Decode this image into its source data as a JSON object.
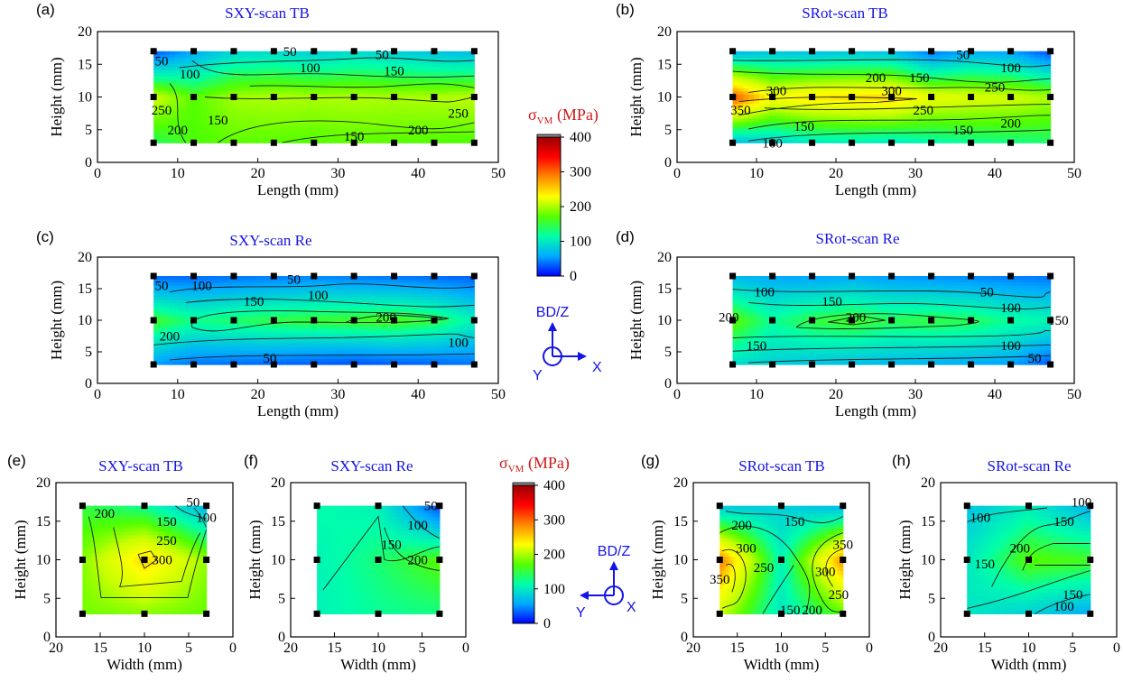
{
  "chart_data": {
    "colorbars": [
      {
        "label": "σVM (MPa)",
        "range": [
          0,
          400
        ],
        "ticks": [
          "0",
          "100",
          "200",
          "300",
          "400"
        ],
        "colors": [
          "#0000ff",
          "#00aaff",
          "#00ffaa",
          "#55ff00",
          "#ffff00",
          "#ff8800",
          "#ff0000",
          "#990000"
        ]
      },
      {
        "label": "σVM (MPa)",
        "range": [
          0,
          400
        ],
        "ticks": [
          "0",
          "100",
          "200",
          "300",
          "400"
        ],
        "colors": [
          "#0000ff",
          "#00aaff",
          "#00ffaa",
          "#55ff00",
          "#ffff00",
          "#ff8800",
          "#ff0000",
          "#990000"
        ]
      }
    ],
    "axis_indicators": [
      {
        "up": "BD/Z",
        "left": "Y",
        "right": "X"
      },
      {
        "up": "BD/Z",
        "left": "Y",
        "right": "X"
      }
    ],
    "panels": [
      {
        "id": "a",
        "label": "(a)",
        "title": "SXY-scan TB",
        "type": "heatmap",
        "xlabel": "Length (mm)",
        "ylabel": "Height (mm)",
        "xlim": [
          0,
          50
        ],
        "ylim": [
          0,
          20
        ],
        "xticks": [
          "0",
          "10",
          "20",
          "30",
          "40",
          "50"
        ],
        "yticks": [
          "0",
          "5",
          "10",
          "15",
          "20"
        ],
        "x": [
          7,
          12,
          17,
          22,
          27,
          32,
          37,
          42,
          47
        ],
        "y": [
          3,
          10,
          17
        ],
        "values": [
          [
            180,
            205,
            212,
            210,
            208,
            212,
            210,
            208,
            206
          ],
          [
            255,
            210,
            235,
            240,
            238,
            240,
            238,
            240,
            245
          ],
          [
            45,
            90,
            125,
            130,
            118,
            128,
            120,
            110,
            102
          ]
        ],
        "contour_labels": [
          {
            "text": "50",
            "x": 8,
            "y": 15.5
          },
          {
            "text": "100",
            "x": 11.5,
            "y": 13.5
          },
          {
            "text": "50",
            "x": 24,
            "y": 17
          },
          {
            "text": "50",
            "x": 35.5,
            "y": 16.5
          },
          {
            "text": "100",
            "x": 26.5,
            "y": 14.5
          },
          {
            "text": "150",
            "x": 37,
            "y": 14
          },
          {
            "text": "250",
            "x": 8,
            "y": 8
          },
          {
            "text": "200",
            "x": 10,
            "y": 5
          },
          {
            "text": "150",
            "x": 15,
            "y": 6.5
          },
          {
            "text": "150",
            "x": 32,
            "y": 4
          },
          {
            "text": "200",
            "x": 40,
            "y": 5
          },
          {
            "text": "250",
            "x": 45,
            "y": 7.5
          }
        ]
      },
      {
        "id": "b",
        "label": "(b)",
        "title": "SRot-scan TB",
        "type": "heatmap",
        "xlabel": "Length (mm)",
        "ylabel": "Height (mm)",
        "xlim": [
          0,
          50
        ],
        "ylim": [
          0,
          20
        ],
        "xticks": [
          "0",
          "10",
          "20",
          "30",
          "40",
          "50"
        ],
        "yticks": [
          "0",
          "5",
          "10",
          "15",
          "20"
        ],
        "x": [
          7,
          12,
          17,
          22,
          27,
          32,
          37,
          42,
          47
        ],
        "y": [
          3,
          10,
          17
        ],
        "values": [
          [
            100,
            120,
            140,
            145,
            140,
            155,
            165,
            170,
            175
          ],
          [
            370,
            285,
            300,
            305,
            310,
            270,
            262,
            255,
            240
          ],
          [
            95,
            110,
            105,
            110,
            105,
            60,
            90,
            85,
            40
          ]
        ],
        "contour_labels": [
          {
            "text": "50",
            "x": 36,
            "y": 16.5
          },
          {
            "text": "100",
            "x": 42,
            "y": 14.5
          },
          {
            "text": "200",
            "x": 25,
            "y": 13
          },
          {
            "text": "150",
            "x": 30.5,
            "y": 13
          },
          {
            "text": "300",
            "x": 12.5,
            "y": 11
          },
          {
            "text": "300",
            "x": 27,
            "y": 11
          },
          {
            "text": "350",
            "x": 8,
            "y": 8
          },
          {
            "text": "250",
            "x": 31,
            "y": 8
          },
          {
            "text": "250",
            "x": 40,
            "y": 11.5
          },
          {
            "text": "150",
            "x": 16,
            "y": 5.5
          },
          {
            "text": "100",
            "x": 12,
            "y": 3
          },
          {
            "text": "150",
            "x": 36,
            "y": 5
          },
          {
            "text": "200",
            "x": 42,
            "y": 6
          }
        ]
      },
      {
        "id": "c",
        "label": "(c)",
        "title": "SXY-scan Re",
        "type": "heatmap",
        "xlabel": "Length (mm)",
        "ylabel": "Height (mm)",
        "xlim": [
          0,
          50
        ],
        "ylim": [
          0,
          20
        ],
        "xticks": [
          "0",
          "10",
          "20",
          "30",
          "40",
          "50"
        ],
        "yticks": [
          "0",
          "5",
          "10",
          "15",
          "20"
        ],
        "x": [
          7,
          12,
          17,
          22,
          27,
          32,
          37,
          42,
          47
        ],
        "y": [
          3,
          10,
          17
        ],
        "values": [
          [
            80,
            60,
            55,
            50,
            45,
            40,
            45,
            50,
            60
          ],
          [
            200,
            170,
            180,
            190,
            195,
            200,
            205,
            190,
            150
          ],
          [
            55,
            55,
            60,
            65,
            70,
            65,
            60,
            55,
            50
          ]
        ],
        "contour_labels": [
          {
            "text": "50",
            "x": 8,
            "y": 15.5
          },
          {
            "text": "100",
            "x": 13,
            "y": 15.5
          },
          {
            "text": "50",
            "x": 24.5,
            "y": 16.5
          },
          {
            "text": "100",
            "x": 27.5,
            "y": 14
          },
          {
            "text": "150",
            "x": 19.5,
            "y": 13
          },
          {
            "text": "200",
            "x": 36,
            "y": 10.5
          },
          {
            "text": "200",
            "x": 9,
            "y": 7.5
          },
          {
            "text": "100",
            "x": 45,
            "y": 6.5
          },
          {
            "text": "50",
            "x": 21.5,
            "y": 4
          }
        ]
      },
      {
        "id": "d",
        "label": "(d)",
        "title": "SRot-scan Re",
        "type": "heatmap",
        "xlabel": "Length (mm)",
        "ylabel": "Height (mm)",
        "xlim": [
          0,
          50
        ],
        "ylim": [
          0,
          20
        ],
        "xticks": [
          "0",
          "10",
          "20",
          "30",
          "40",
          "50"
        ],
        "yticks": [
          "0",
          "5",
          "10",
          "15",
          "20"
        ],
        "x": [
          7,
          12,
          17,
          22,
          27,
          32,
          37,
          42,
          47
        ],
        "y": [
          3,
          10,
          17
        ],
        "values": [
          [
            130,
            120,
            110,
            105,
            100,
            95,
            90,
            85,
            45
          ],
          [
            215,
            165,
            190,
            200,
            185,
            190,
            185,
            165,
            155
          ],
          [
            100,
            90,
            85,
            90,
            80,
            75,
            70,
            65,
            60
          ]
        ],
        "contour_labels": [
          {
            "text": "100",
            "x": 11,
            "y": 14.5
          },
          {
            "text": "150",
            "x": 19.5,
            "y": 13
          },
          {
            "text": "50",
            "x": 39,
            "y": 14.5
          },
          {
            "text": "100",
            "x": 42,
            "y": 12
          },
          {
            "text": "200",
            "x": 6.5,
            "y": 10.5
          },
          {
            "text": "200",
            "x": 22.5,
            "y": 10.5
          },
          {
            "text": "150",
            "x": 48,
            "y": 10
          },
          {
            "text": "150",
            "x": 10,
            "y": 6
          },
          {
            "text": "100",
            "x": 42,
            "y": 6
          },
          {
            "text": "50",
            "x": 45,
            "y": 4
          }
        ]
      },
      {
        "id": "e",
        "label": "(e)",
        "title": "SXY-scan TB",
        "type": "heatmap",
        "xlabel": "Width (mm)",
        "ylabel": "Height (mm)",
        "xlim": [
          20,
          0
        ],
        "ylim": [
          0,
          20
        ],
        "xticks": [
          "20",
          "15",
          "10",
          "5",
          "0"
        ],
        "yticks": [
          "0",
          "5",
          "10",
          "15",
          "20"
        ],
        "x": [
          17,
          10,
          3
        ],
        "y": [
          3,
          10,
          17
        ],
        "values": [
          [
            220,
            225,
            215
          ],
          [
            225,
            310,
            230
          ],
          [
            190,
            165,
            100
          ]
        ],
        "contour_labels": [
          {
            "text": "50",
            "x": 4.5,
            "y": 17.5
          },
          {
            "text": "100",
            "x": 3,
            "y": 15.5
          },
          {
            "text": "200",
            "x": 14.5,
            "y": 16
          },
          {
            "text": "150",
            "x": 7.5,
            "y": 15
          },
          {
            "text": "250",
            "x": 7.5,
            "y": 12.5
          },
          {
            "text": "300",
            "x": 8,
            "y": 10
          }
        ]
      },
      {
        "id": "f",
        "label": "(f)",
        "title": "SXY-scan Re",
        "type": "heatmap",
        "xlabel": "Width (mm)",
        "ylabel": "Height (mm)",
        "xlim": [
          20,
          0
        ],
        "ylim": [
          0,
          20
        ],
        "xticks": [
          "20",
          "15",
          "10",
          "5",
          "0"
        ],
        "yticks": [
          "0",
          "5",
          "10",
          "15",
          "20"
        ],
        "x": [
          17,
          10,
          3
        ],
        "y": [
          3,
          10,
          17
        ],
        "values": [
          [
            150,
            165,
            170
          ],
          [
            150,
            175,
            210
          ],
          [
            160,
            150,
            40
          ]
        ],
        "contour_labels": [
          {
            "text": "50",
            "x": 4,
            "y": 17
          },
          {
            "text": "100",
            "x": 5.5,
            "y": 14.5
          },
          {
            "text": "150",
            "x": 8.5,
            "y": 12
          },
          {
            "text": "200",
            "x": 5.5,
            "y": 10
          }
        ]
      },
      {
        "id": "g",
        "label": "(g)",
        "title": "SRot-scan TB",
        "type": "heatmap",
        "xlabel": "Width (mm)",
        "ylabel": "Height (mm)",
        "xlim": [
          20,
          0
        ],
        "ylim": [
          0,
          20
        ],
        "xticks": [
          "20",
          "15",
          "10",
          "5",
          "0"
        ],
        "yticks": [
          "0",
          "5",
          "10",
          "15",
          "20"
        ],
        "x": [
          17,
          10,
          3
        ],
        "y": [
          3,
          10,
          17
        ],
        "values": [
          [
            250,
            140,
            210
          ],
          [
            350,
            150,
            340
          ],
          [
            110,
            120,
            100
          ]
        ],
        "contour_labels": [
          {
            "text": "200",
            "x": 14.5,
            "y": 14.5
          },
          {
            "text": "150",
            "x": 8.5,
            "y": 15
          },
          {
            "text": "300",
            "x": 14,
            "y": 11.5
          },
          {
            "text": "350",
            "x": 3,
            "y": 12
          },
          {
            "text": "250",
            "x": 12,
            "y": 9
          },
          {
            "text": "300",
            "x": 5,
            "y": 8.5
          },
          {
            "text": "350",
            "x": 17,
            "y": 7.5
          },
          {
            "text": "250",
            "x": 3.5,
            "y": 5.5
          },
          {
            "text": "150",
            "x": 9,
            "y": 3.5
          },
          {
            "text": "200",
            "x": 6.5,
            "y": 3.5
          }
        ]
      },
      {
        "id": "h",
        "label": "(h)",
        "title": "SRot-scan Re",
        "type": "heatmap",
        "xlabel": "Width (mm)",
        "ylabel": "Height (mm)",
        "xlim": [
          20,
          0
        ],
        "ylim": [
          0,
          20
        ],
        "xticks": [
          "20",
          "15",
          "10",
          "5",
          "0"
        ],
        "yticks": [
          "0",
          "5",
          "10",
          "15",
          "20"
        ],
        "x": [
          17,
          10,
          3
        ],
        "y": [
          3,
          10,
          17
        ],
        "values": [
          [
            140,
            120,
            90
          ],
          [
            140,
            210,
            200
          ],
          [
            110,
            145,
            95
          ]
        ],
        "contour_labels": [
          {
            "text": "100",
            "x": 4,
            "y": 17.5
          },
          {
            "text": "100",
            "x": 15.5,
            "y": 15.5
          },
          {
            "text": "150",
            "x": 6,
            "y": 15
          },
          {
            "text": "200",
            "x": 11,
            "y": 11.5
          },
          {
            "text": "150",
            "x": 15,
            "y": 9.5
          },
          {
            "text": "150",
            "x": 5,
            "y": 5.5
          },
          {
            "text": "100",
            "x": 6,
            "y": 4
          }
        ]
      }
    ]
  }
}
